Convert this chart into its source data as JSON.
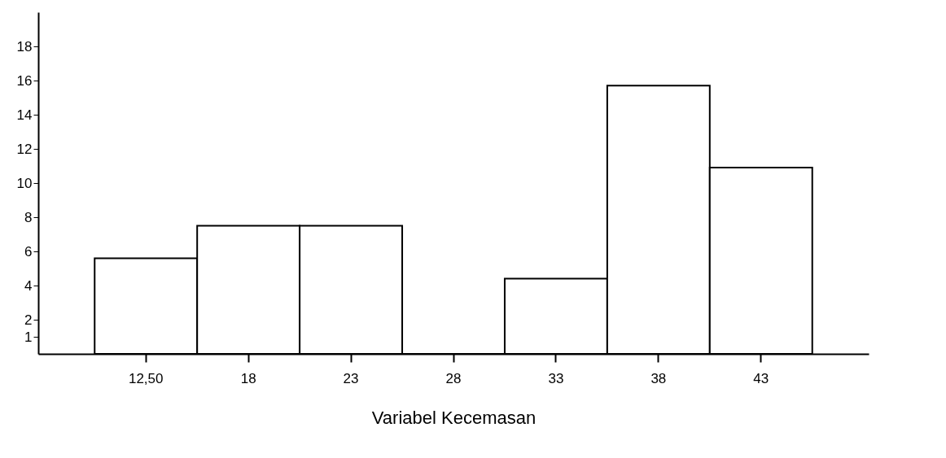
{
  "chart_data": {
    "type": "bar",
    "xlabel": "Variabel Kecemasan",
    "categories": [
      "12,50",
      "18",
      "23",
      "28",
      "33",
      "38",
      "43"
    ],
    "values": [
      5.6,
      7.5,
      7.5,
      0,
      4.4,
      15.7,
      10.9
    ],
    "color": "#ffffff",
    "ylim": [
      0,
      20
    ],
    "yticks": [
      1,
      2,
      4,
      6,
      8,
      10,
      12,
      14,
      16,
      18
    ]
  }
}
